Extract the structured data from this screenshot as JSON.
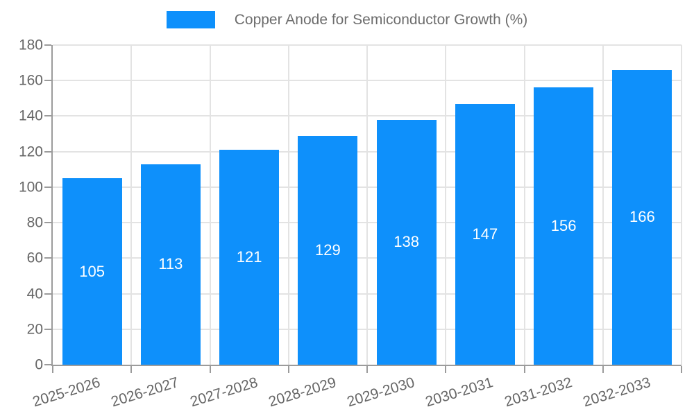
{
  "legend": {
    "label": "Copper Anode for Semiconductor Growth (%)",
    "swatch_color": "#0e90fb"
  },
  "chart_data": {
    "type": "bar",
    "title": "Copper Anode for Semiconductor Growth (%)",
    "categories": [
      "2025-2026",
      "2026-2027",
      "2027-2028",
      "2028-2029",
      "2029-2030",
      "2030-2031",
      "2031-2032",
      "2032-2033"
    ],
    "values": [
      105,
      113,
      121,
      129,
      138,
      147,
      156,
      166
    ],
    "xlabel": "",
    "ylabel": "",
    "ylim": [
      0,
      180
    ],
    "yticks": [
      0,
      20,
      40,
      60,
      80,
      100,
      120,
      140,
      160,
      180
    ],
    "grid": true,
    "legend_position": "top-center",
    "bar_color": "#0e90fb",
    "bar_label_color": "#ffffff",
    "axis_color": "#9b9b9b",
    "grid_color": "#e3e3e3",
    "tick_label_color": "#666666"
  }
}
